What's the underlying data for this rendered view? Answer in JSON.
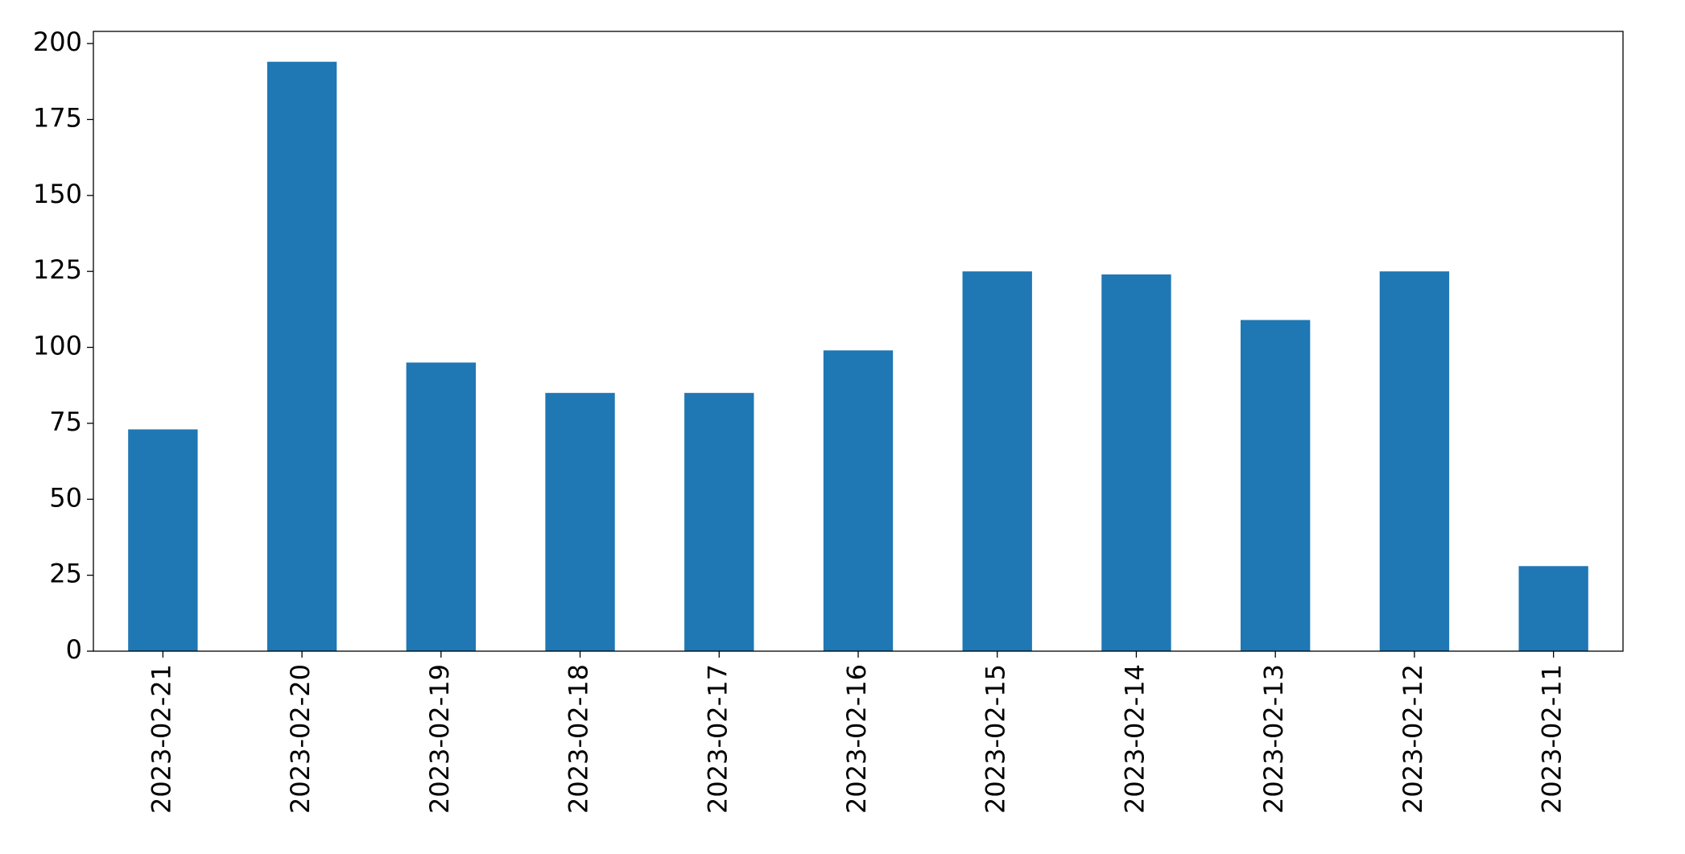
{
  "chart_data": {
    "type": "bar",
    "categories": [
      "2023-02-21",
      "2023-02-20",
      "2023-02-19",
      "2023-02-18",
      "2023-02-17",
      "2023-02-16",
      "2023-02-15",
      "2023-02-14",
      "2023-02-13",
      "2023-02-12",
      "2023-02-11"
    ],
    "values": [
      73,
      194,
      95,
      85,
      85,
      99,
      125,
      124,
      109,
      125,
      28
    ],
    "color": "#1f77b4",
    "ylim": [
      0,
      204
    ],
    "yticks": [
      0,
      25,
      50,
      75,
      100,
      125,
      150,
      175,
      200
    ],
    "grid": false
  }
}
